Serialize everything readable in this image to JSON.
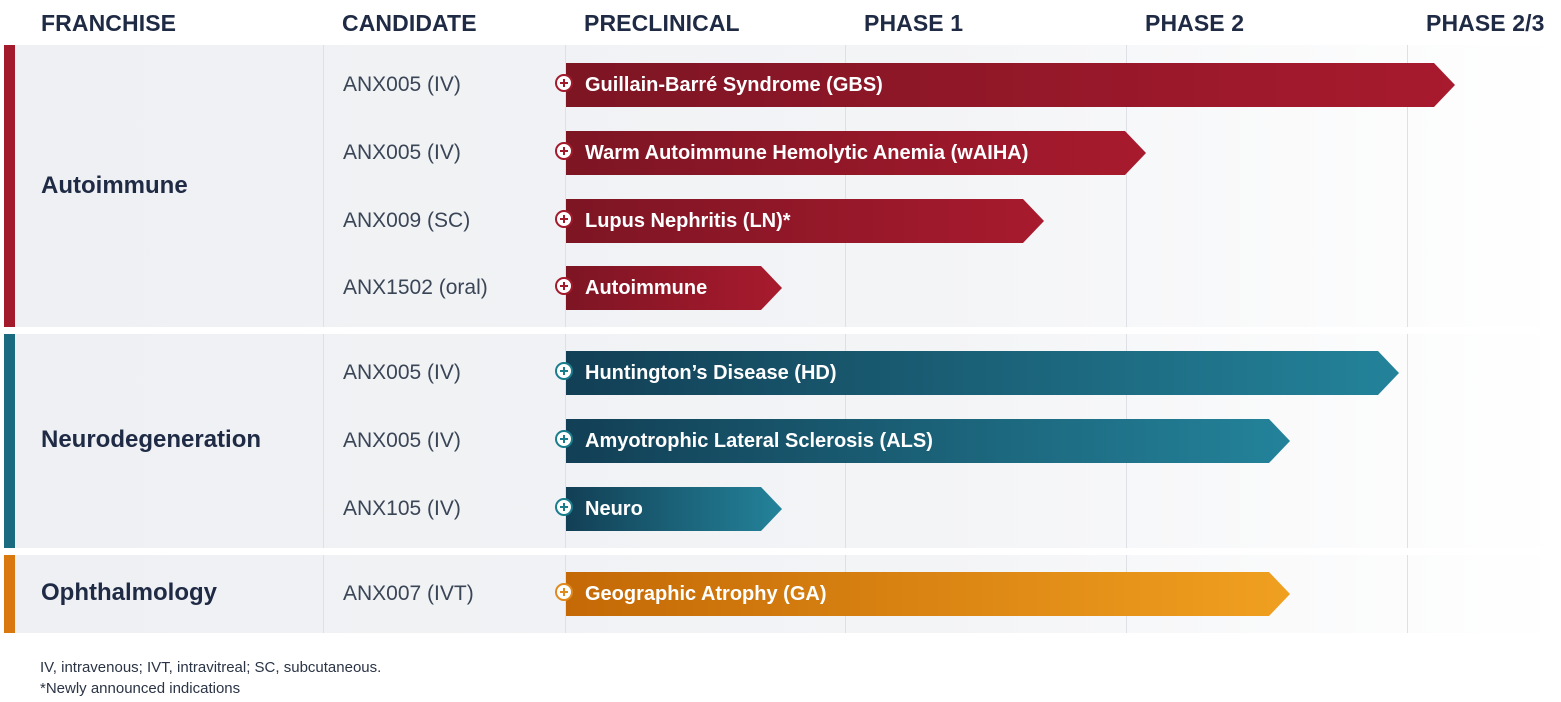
{
  "headers": {
    "franchise": "FRANCHISE",
    "candidate": "CANDIDATE",
    "preclinical": "PRECLINICAL",
    "phase1": "PHASE 1",
    "phase2": "PHASE 2",
    "phase23": "PHASE 2/3"
  },
  "franchises": [
    {
      "name": "Autoimmune",
      "color": "#a31a2c",
      "rows": [
        {
          "candidate": "ANX005 (IV)",
          "indication": "Guillain-Barré Syndrome (GBS)",
          "stage_reached": "Phase 2/3"
        },
        {
          "candidate": "ANX005 (IV)",
          "indication": "Warm Autoimmune Hemolytic Anemia (wAIHA)",
          "stage_reached": "Phase 2"
        },
        {
          "candidate": "ANX009 (SC)",
          "indication": "Lupus Nephritis (LN)*",
          "stage_reached": "Phase 1"
        },
        {
          "candidate": "ANX1502 (oral)",
          "indication": "Autoimmune",
          "stage_reached": "Preclinical"
        }
      ]
    },
    {
      "name": "Neurodegeneration",
      "color": "#1a6a80",
      "rows": [
        {
          "candidate": "ANX005 (IV)",
          "indication": "Huntington’s Disease (HD)",
          "stage_reached": "Phase 2/3"
        },
        {
          "candidate": "ANX005 (IV)",
          "indication": "Amyotrophic Lateral Sclerosis (ALS)",
          "stage_reached": "Phase 2"
        },
        {
          "candidate": "ANX105 (IV)",
          "indication": "Neuro",
          "stage_reached": "Preclinical"
        }
      ]
    },
    {
      "name": "Ophthalmology",
      "color": "#d9780e",
      "rows": [
        {
          "candidate": "ANX007 (IVT)",
          "indication": "Geographic Atrophy (GA)",
          "stage_reached": "Phase 2"
        }
      ]
    }
  ],
  "footnotes": {
    "abbreviations": "IV, intravenous; IVT, intravitreal; SC, subcutaneous.",
    "new_indications": "*Newly announced indications"
  },
  "colors": {
    "autoimmune_bar_start": "#7d1523",
    "autoimmune_bar_end": "#a81a2e",
    "neuro_bar_start": "#123f55",
    "neuro_bar_end": "#23839a",
    "ophtho_bar_start": "#c46906",
    "ophtho_bar_end": "#f0a020",
    "header_text": "#1f2a44"
  }
}
